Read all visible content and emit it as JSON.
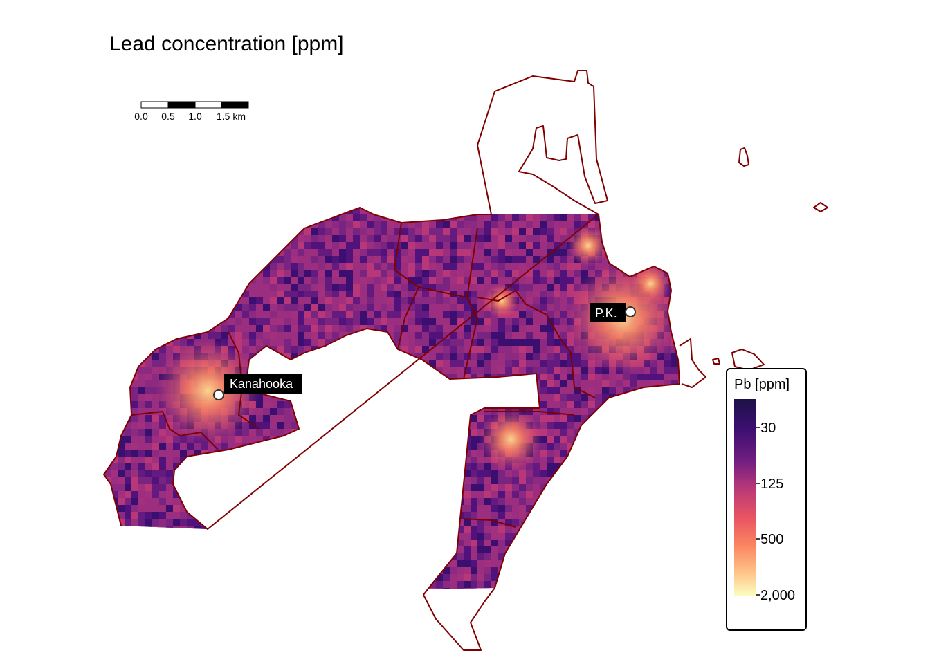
{
  "title": "Lead concentration [ppm]",
  "scale_bar": {
    "labels": [
      "0.0",
      "0.5",
      "1.0",
      "1.5 km"
    ]
  },
  "places": [
    {
      "name": "Kanahooka"
    },
    {
      "name": "P.K."
    }
  ],
  "legend": {
    "title": "Pb [ppm]",
    "ticks": [
      "30",
      "125",
      "500",
      "2,000"
    ],
    "palette": [
      "#fcfdbf",
      "#fec287",
      "#fb8761",
      "#e85362",
      "#b73779",
      "#8c2981",
      "#51127c",
      "#221150",
      "#1d1147"
    ]
  },
  "colors": {
    "boundary": "#800000",
    "label_bg": "#000000",
    "marker_fill": "#ffffff"
  }
}
